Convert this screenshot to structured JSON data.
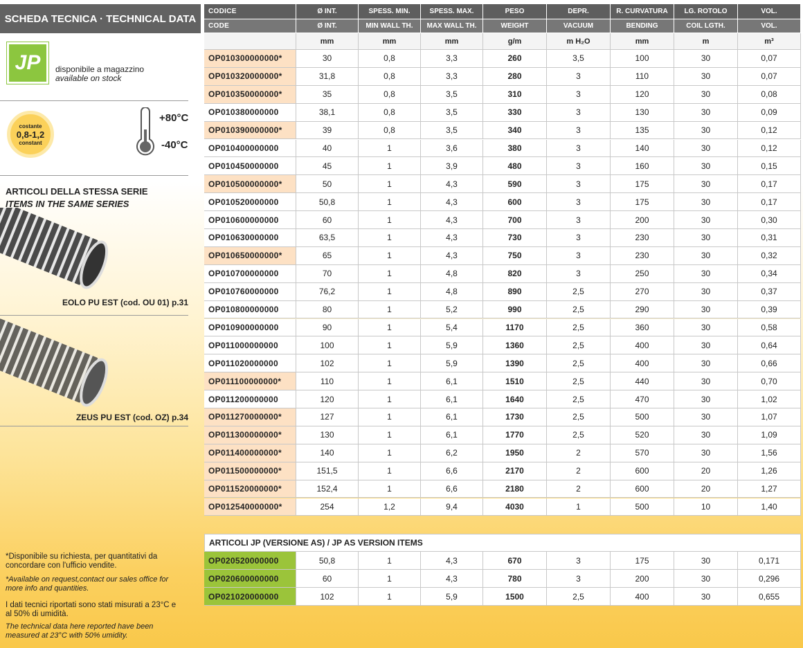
{
  "sidebar": {
    "title": "SCHEDA TECNICA · TECHNICAL DATA",
    "logo": "JP",
    "stock_it": "disponibile a magazzino",
    "stock_en": "available on stock",
    "badge_top": "costante",
    "badge_value": "0,8-1,2",
    "badge_bottom": "constant",
    "temp_max": "+80°C",
    "temp_min": "-40°C",
    "series_it": "ARTICOLI DELLA STESSA SERIE",
    "series_en": "ITEMS IN THE SAME SERIES",
    "related": [
      "EOLO PU EST (cod. OU 01) p.31",
      "ZEUS PU EST (cod. OZ) p.34"
    ],
    "notes": [
      "*Disponibile su richiesta, per quantitativi da concordare con l'ufficio vendite.",
      "*Available on request,contact our sales office for more info and quantities.",
      "I dati tecnici riportati sono stati misurati a 23°C e al 50% di umidità.",
      "The technical data here reported have been measured at 23°C with 50% umidity."
    ]
  },
  "table": {
    "header_it": [
      "CODICE",
      "Ø INT.",
      "SPESS. MIN.",
      "SPESS. MAX.",
      "PESO",
      "DEPR.",
      "R. CURVATURA",
      "LG. ROTOLO",
      "VOL."
    ],
    "header_en": [
      "CODE",
      "Ø INT.",
      "MIN WALL TH.",
      "MAX WALL TH.",
      "WEIGHT",
      "VACUUM",
      "BENDING",
      "COIL LGTH.",
      "VOL."
    ],
    "units": [
      "",
      "mm",
      "mm",
      "mm",
      "g/m",
      "m H₂O",
      "mm",
      "m",
      "m³"
    ],
    "rows": [
      [
        "OP010300000000*",
        "30",
        "0,8",
        "3,3",
        "260",
        "3,5",
        "100",
        "30",
        "0,07"
      ],
      [
        "OP010320000000*",
        "31,8",
        "0,8",
        "3,3",
        "280",
        "3",
        "110",
        "30",
        "0,07"
      ],
      [
        "OP010350000000*",
        "35",
        "0,8",
        "3,5",
        "310",
        "3",
        "120",
        "30",
        "0,08"
      ],
      [
        "OP010380000000",
        "38,1",
        "0,8",
        "3,5",
        "330",
        "3",
        "130",
        "30",
        "0,09"
      ],
      [
        "OP010390000000*",
        "39",
        "0,8",
        "3,5",
        "340",
        "3",
        "135",
        "30",
        "0,12"
      ],
      [
        "OP010400000000",
        "40",
        "1",
        "3,6",
        "380",
        "3",
        "140",
        "30",
        "0,12"
      ],
      [
        "OP010450000000",
        "45",
        "1",
        "3,9",
        "480",
        "3",
        "160",
        "30",
        "0,15"
      ],
      [
        "OP010500000000*",
        "50",
        "1",
        "4,3",
        "590",
        "3",
        "175",
        "30",
        "0,17"
      ],
      [
        "OP010520000000",
        "50,8",
        "1",
        "4,3",
        "600",
        "3",
        "175",
        "30",
        "0,17"
      ],
      [
        "OP010600000000",
        "60",
        "1",
        "4,3",
        "700",
        "3",
        "200",
        "30",
        "0,30"
      ],
      [
        "OP010630000000",
        "63,5",
        "1",
        "4,3",
        "730",
        "3",
        "230",
        "30",
        "0,31"
      ],
      [
        "OP010650000000*",
        "65",
        "1",
        "4,3",
        "750",
        "3",
        "230",
        "30",
        "0,32"
      ],
      [
        "OP010700000000",
        "70",
        "1",
        "4,8",
        "820",
        "3",
        "250",
        "30",
        "0,34"
      ],
      [
        "OP010760000000",
        "76,2",
        "1",
        "4,8",
        "890",
        "2,5",
        "270",
        "30",
        "0,37"
      ],
      [
        "OP010800000000",
        "80",
        "1",
        "5,2",
        "990",
        "2,5",
        "290",
        "30",
        "0,39"
      ],
      [
        "OP010900000000",
        "90",
        "1",
        "5,4",
        "1170",
        "2,5",
        "360",
        "30",
        "0,58"
      ],
      [
        "OP011000000000",
        "100",
        "1",
        "5,9",
        "1360",
        "2,5",
        "400",
        "30",
        "0,64"
      ],
      [
        "OP011020000000",
        "102",
        "1",
        "5,9",
        "1390",
        "2,5",
        "400",
        "30",
        "0,66"
      ],
      [
        "OP011100000000*",
        "110",
        "1",
        "6,1",
        "1510",
        "2,5",
        "440",
        "30",
        "0,70"
      ],
      [
        "OP011200000000",
        "120",
        "1",
        "6,1",
        "1640",
        "2,5",
        "470",
        "30",
        "1,02"
      ],
      [
        "OP011270000000*",
        "127",
        "1",
        "6,1",
        "1730",
        "2,5",
        "500",
        "30",
        "1,07"
      ],
      [
        "OP011300000000*",
        "130",
        "1",
        "6,1",
        "1770",
        "2,5",
        "520",
        "30",
        "1,09"
      ],
      [
        "OP011400000000*",
        "140",
        "1",
        "6,2",
        "1950",
        "2",
        "570",
        "30",
        "1,56"
      ],
      [
        "OP011500000000*",
        "151,5",
        "1",
        "6,6",
        "2170",
        "2",
        "600",
        "20",
        "1,26"
      ],
      [
        "OP011520000000*",
        "152,4",
        "1",
        "6,6",
        "2180",
        "2",
        "600",
        "20",
        "1,27"
      ],
      [
        "OP012540000000*",
        "254",
        "1,2",
        "9,4",
        "4030",
        "1",
        "500",
        "10",
        "1,40"
      ]
    ]
  },
  "as_table": {
    "title": "ARTICOLI JP (VERSIONE AS) / JP AS VERSION ITEMS",
    "rows": [
      [
        "OP020520000000",
        "50,8",
        "1",
        "4,3",
        "670",
        "3",
        "175",
        "30",
        "0,171"
      ],
      [
        "OP020600000000",
        "60",
        "1",
        "4,3",
        "780",
        "3",
        "200",
        "30",
        "0,296"
      ],
      [
        "OP021020000000",
        "102",
        "1",
        "5,9",
        "1500",
        "2,5",
        "400",
        "30",
        "0,655"
      ]
    ]
  }
}
